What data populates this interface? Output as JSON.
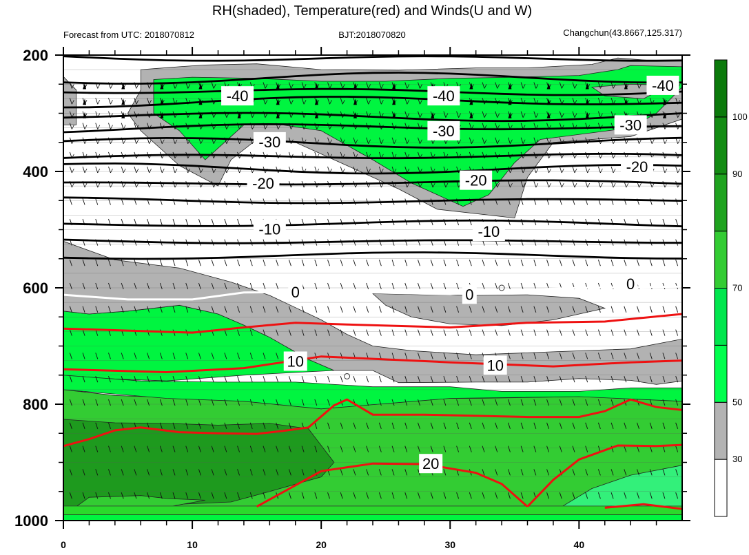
{
  "chart_data": {
    "type": "contour",
    "title": "RH(shaded), Temperature(red) and Winds(U and W)",
    "subtitle_left": "Forecast from UTC: 2018070812",
    "subtitle_center": "BJT:2018070820",
    "subtitle_right": "Changchun(43.8667,125.317)",
    "x": {
      "range": [
        0,
        48
      ],
      "ticks": [
        "0",
        "10",
        "20",
        "30",
        "40"
      ],
      "tick_values": [
        0,
        10,
        20,
        30,
        40
      ]
    },
    "y": {
      "range": [
        200,
        1000
      ],
      "reversed": true,
      "ticks": [
        "200",
        "400",
        "600",
        "800",
        "1000"
      ],
      "tick_values": [
        200,
        400,
        600,
        800,
        1000
      ]
    },
    "colorbar": {
      "tick_labels": [
        "30",
        "50",
        "70",
        "90",
        "100"
      ],
      "levels": [
        30,
        50,
        70,
        90,
        100
      ],
      "colors": [
        "#ffffff",
        "#b3b3b3",
        "#00ff4d",
        "#00e64d",
        "#33cc33",
        "#1fa31f",
        "#138c13",
        "#0b7a0b"
      ]
    },
    "rh_colors": {
      "gray": "#b2b2b2",
      "light_green": "#00f540",
      "mid_green": "#2bd92b",
      "green": "#33cc33",
      "dark_green": "#1e9a1e",
      "pale_green": "#33f07a"
    },
    "temperature_labels": [
      {
        "text": "-40",
        "x": 13.5,
        "p": 270
      },
      {
        "text": "-40",
        "x": 29.5,
        "p": 270
      },
      {
        "text": "-40",
        "x": 46.5,
        "p": 252
      },
      {
        "text": "-30",
        "x": 16,
        "p": 349
      },
      {
        "text": "-30",
        "x": 29.5,
        "p": 330
      },
      {
        "text": "-30",
        "x": 44,
        "p": 320
      },
      {
        "text": "-20",
        "x": 15.5,
        "p": 420
      },
      {
        "text": "-20",
        "x": 32,
        "p": 415
      },
      {
        "text": "-20",
        "x": 44.5,
        "p": 392
      },
      {
        "text": "-10",
        "x": 16,
        "p": 499
      },
      {
        "text": "-10",
        "x": 33,
        "p": 503
      },
      {
        "text": "0",
        "x": 18,
        "p": 607
      },
      {
        "text": "0",
        "x": 31.5,
        "p": 611
      },
      {
        "text": "0",
        "x": 44,
        "p": 593
      },
      {
        "text": "10",
        "x": 18,
        "p": 726
      },
      {
        "text": "10",
        "x": 33.5,
        "p": 733
      },
      {
        "text": "20",
        "x": 28.5,
        "p": 902
      }
    ],
    "black_isotherms_p": [
      205,
      240,
      262,
      280,
      305,
      325,
      350,
      375,
      395,
      420,
      450,
      490,
      520,
      545
    ],
    "red_isotherms": [
      {
        "label": "",
        "points": [
          [
            0,
            670
          ],
          [
            10,
            677
          ],
          [
            14,
            668
          ],
          [
            18,
            660
          ],
          [
            22,
            663
          ],
          [
            30,
            668
          ],
          [
            36,
            660
          ],
          [
            42,
            658
          ],
          [
            48,
            645
          ]
        ]
      },
      {
        "label": "10",
        "points": [
          [
            0,
            740
          ],
          [
            8,
            745
          ],
          [
            14,
            738
          ],
          [
            20,
            718
          ],
          [
            24,
            722
          ],
          [
            30,
            728
          ],
          [
            38,
            735
          ],
          [
            44,
            728
          ],
          [
            48,
            725
          ]
        ]
      },
      {
        "label": "",
        "points": [
          [
            0,
            872
          ],
          [
            2,
            860
          ],
          [
            4,
            845
          ],
          [
            6,
            840
          ],
          [
            9,
            848
          ],
          [
            12,
            850
          ],
          [
            15,
            851
          ],
          [
            17,
            846
          ],
          [
            19,
            840
          ],
          [
            21,
            802
          ],
          [
            22,
            792
          ],
          [
            24,
            818
          ],
          [
            28,
            818
          ],
          [
            32,
            820
          ],
          [
            36,
            822
          ],
          [
            40,
            822
          ],
          [
            42,
            812
          ],
          [
            44,
            792
          ],
          [
            46,
            805
          ],
          [
            48,
            810
          ]
        ]
      },
      {
        "label": "20",
        "points": [
          [
            15,
            976
          ],
          [
            20,
            915
          ],
          [
            24,
            902
          ],
          [
            28,
            903
          ],
          [
            32,
            918
          ],
          [
            34,
            937
          ],
          [
            36,
            976
          ]
        ]
      },
      {
        "label": "",
        "points": [
          [
            36,
            976
          ],
          [
            38,
            930
          ],
          [
            40,
            895
          ],
          [
            43,
            871
          ],
          [
            46,
            872
          ],
          [
            48,
            870
          ]
        ]
      },
      {
        "label": "",
        "points": [
          [
            42,
            978
          ],
          [
            45,
            972
          ],
          [
            48,
            980
          ]
        ]
      }
    ],
    "white_isotherm": {
      "label": "0",
      "points": [
        [
          0,
          612
        ],
        [
          5,
          620
        ],
        [
          10,
          620
        ],
        [
          14,
          608
        ],
        [
          18,
          607
        ],
        [
          24,
          608
        ],
        [
          30,
          611
        ],
        [
          34,
          605
        ],
        [
          40,
          600
        ],
        [
          48,
          598
        ]
      ]
    },
    "markers": [
      {
        "x": 34,
        "p": 600
      },
      {
        "x": 22,
        "p": 752
      }
    ]
  }
}
